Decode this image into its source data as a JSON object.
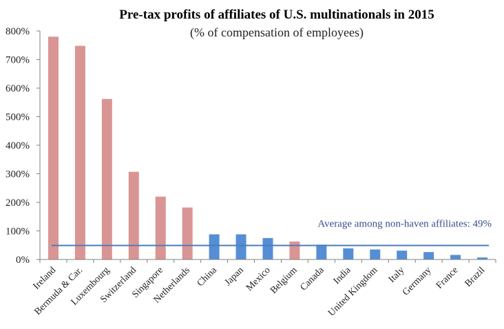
{
  "chart_data": {
    "type": "bar",
    "title": "Pre-tax profits of affiliates of U.S. multinationals in 2015",
    "subtitle": "(% of compensation of employees)",
    "xlabel": "",
    "ylabel": "",
    "ylim": [
      0,
      800
    ],
    "yticks": [
      0,
      100,
      200,
      300,
      400,
      500,
      600,
      700,
      800
    ],
    "ytick_labels": [
      "0%",
      "100%",
      "200%",
      "300%",
      "400%",
      "500%",
      "600%",
      "700%",
      "800%"
    ],
    "grid": false,
    "legend": null,
    "categories": [
      "Ireland",
      "Bermuda & Car.",
      "Luxembourg",
      "Switzerland",
      "Singapore",
      "Netherlands",
      "China",
      "Japan",
      "Mexico",
      "Belgium",
      "Canada",
      "India",
      "United Kingdom",
      "Italy",
      "Germany",
      "France",
      "Brazil"
    ],
    "values": [
      780,
      748,
      562,
      307,
      220,
      182,
      88,
      88,
      75,
      63,
      52,
      39,
      35,
      31,
      26,
      16,
      7
    ],
    "groups": [
      "haven",
      "haven",
      "haven",
      "haven",
      "haven",
      "haven",
      "non-haven",
      "non-haven",
      "non-haven",
      "haven",
      "non-haven",
      "non-haven",
      "non-haven",
      "non-haven",
      "non-haven",
      "non-haven",
      "non-haven"
    ],
    "group_colors": {
      "haven": "#d99594",
      "non-haven": "#558ed5"
    },
    "reference_line": {
      "value": 49,
      "label": "Average among non-haven affiliates: 49%",
      "color": "#4a7ebb"
    },
    "axis_color": "#808080"
  }
}
